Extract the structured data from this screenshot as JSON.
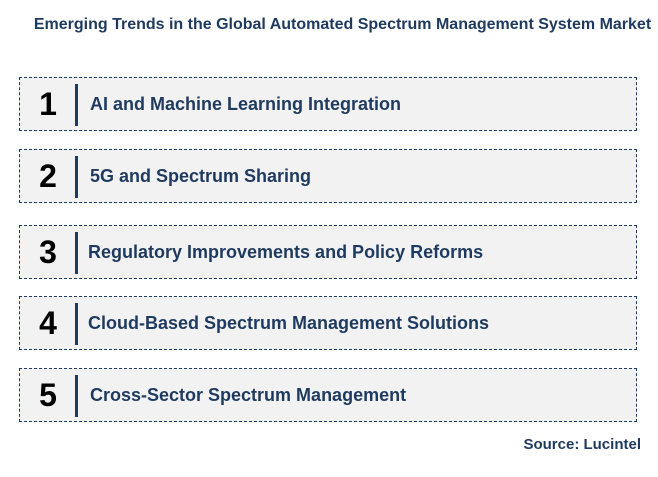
{
  "title": "Emerging Trends in the Global Automated Spectrum Management System Market",
  "trends": [
    {
      "number": "1",
      "label": "AI and Machine Learning Integration"
    },
    {
      "number": "2",
      "label": "5G and Spectrum Sharing"
    },
    {
      "number": "3",
      "label": "Regulatory Improvements and Policy Reforms"
    },
    {
      "number": "4",
      "label": "Cloud-Based Spectrum Management Solutions"
    },
    {
      "number": "5",
      "label": "Cross-Sector Spectrum Management"
    }
  ],
  "source": "Source: Lucintel",
  "colors": {
    "accent": "#1f3a5f",
    "box_background": "#f2f2f2",
    "number": "#000000"
  }
}
